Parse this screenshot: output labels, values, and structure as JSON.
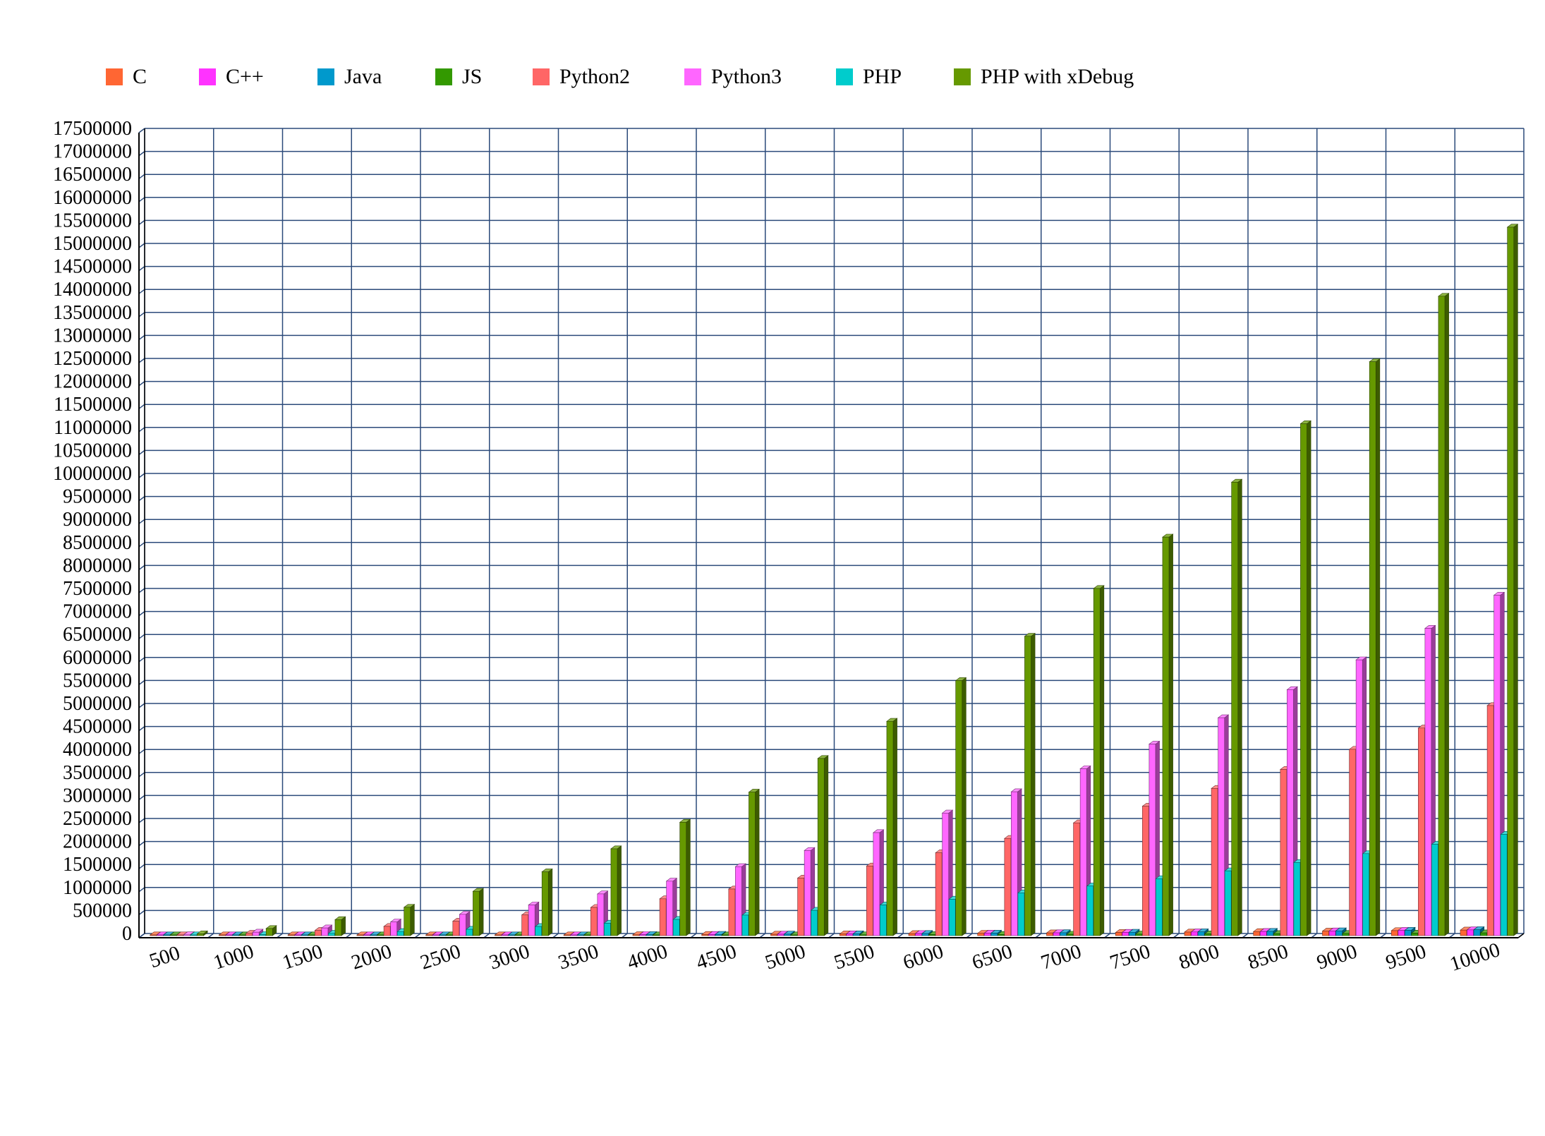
{
  "chart_data": {
    "type": "bar",
    "title": "",
    "xlabel": "",
    "ylabel": "",
    "ylim": [
      0,
      17500000
    ],
    "y_tick_step": 500000,
    "grid": true,
    "legend_position": "top",
    "three_d": true,
    "categories": [
      "500",
      "1000",
      "1500",
      "2000",
      "2500",
      "3000",
      "3500",
      "4000",
      "4500",
      "5000",
      "5500",
      "6000",
      "6500",
      "7000",
      "7500",
      "8000",
      "8500",
      "9000",
      "9500",
      "10000"
    ],
    "y_ticks": [
      "0",
      "500000",
      "1000000",
      "1500000",
      "2000000",
      "2500000",
      "3000000",
      "3500000",
      "4000000",
      "4500000",
      "5000000",
      "5500000",
      "6000000",
      "6500000",
      "7000000",
      "7500000",
      "8000000",
      "8500000",
      "9000000",
      "9500000",
      "10000000",
      "10500000",
      "11000000",
      "11500000",
      "12000000",
      "12500000",
      "13000000",
      "13500000",
      "14000000",
      "14500000",
      "15000000",
      "15500000",
      "16000000",
      "16500000",
      "17000000",
      "17500000"
    ],
    "series": [
      {
        "name": "C",
        "color": "#ff6633",
        "values": [
          300,
          1200,
          2700,
          4800,
          7500,
          10800,
          14700,
          19200,
          24300,
          30000,
          36300,
          43200,
          50700,
          58800,
          67500,
          76800,
          86700,
          97200,
          108300,
          120000
        ]
      },
      {
        "name": "C++",
        "color": "#ff33ff",
        "values": [
          310,
          1250,
          2800,
          5000,
          7800,
          11200,
          15300,
          20000,
          25300,
          31200,
          37800,
          45000,
          52800,
          61200,
          70300,
          80000,
          90300,
          101200,
          112800,
          125000
        ]
      },
      {
        "name": "Java",
        "color": "#0099cc",
        "values": [
          320,
          1300,
          2900,
          5100,
          8000,
          11500,
          15700,
          20500,
          25900,
          32000,
          38700,
          46100,
          54100,
          62700,
          72000,
          81900,
          92500,
          103700,
          115600,
          128000
        ]
      },
      {
        "name": "JS",
        "color": "#339900",
        "values": [
          150,
          600,
          1350,
          2400,
          3750,
          5400,
          7350,
          9600,
          12150,
          15000,
          18150,
          21600,
          25350,
          29400,
          33750,
          38400,
          43350,
          48600,
          54150,
          60000
        ]
      },
      {
        "name": "Python2",
        "color": "#ff6666",
        "values": [
          12500,
          50000,
          112500,
          200000,
          312500,
          450000,
          612500,
          800000,
          1012500,
          1250000,
          1512500,
          1800000,
          2112500,
          2450000,
          2812500,
          3200000,
          3612500,
          4050000,
          4512500,
          5000000
        ]
      },
      {
        "name": "Python3",
        "color": "#ff66ff",
        "values": [
          18500,
          74000,
          166500,
          296000,
          462500,
          666000,
          906500,
          1184000,
          1498500,
          1850000,
          2238500,
          2664000,
          3126500,
          3626000,
          4162500,
          4736000,
          5346500,
          5994000,
          6678500,
          7400000
        ]
      },
      {
        "name": "PHP",
        "color": "#00cccc",
        "values": [
          5500,
          22000,
          49500,
          88000,
          137500,
          198000,
          269500,
          352000,
          445500,
          550000,
          665500,
          792000,
          929500,
          1078000,
          1237500,
          1408000,
          1589500,
          1782000,
          1985500,
          2200000
        ]
      },
      {
        "name": "PHP with xDebug",
        "color": "#669900",
        "values": [
          38500,
          154000,
          346500,
          616000,
          962500,
          1386000,
          1886500,
          2464000,
          3118500,
          3850000,
          4658500,
          5544000,
          6506500,
          7546000,
          8662500,
          9856000,
          11126500,
          12474000,
          13898500,
          15400000
        ]
      }
    ]
  }
}
